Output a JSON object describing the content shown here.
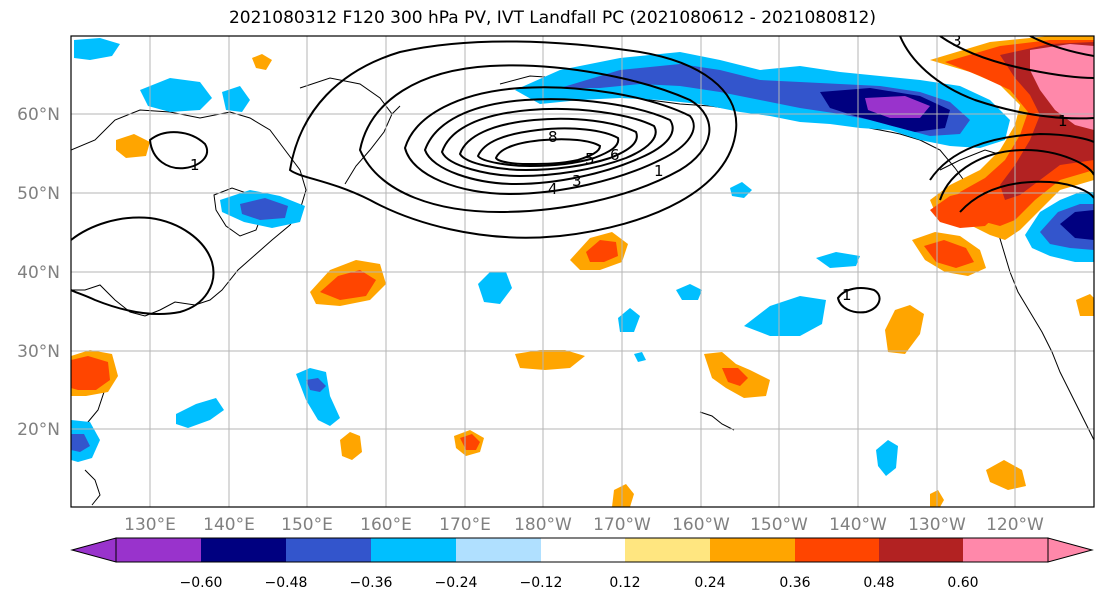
{
  "title": "2021080312 F120 300 hPa PV, IVT Landfall PC (2021080612 - 2021080812)",
  "lat_labels": [
    "60°N",
    "50°N",
    "40°N",
    "30°N",
    "20°N"
  ],
  "lon_labels": [
    "130°E",
    "140°E",
    "150°E",
    "160°E",
    "170°E",
    "180°W",
    "170°W",
    "160°W",
    "150°W",
    "140°W",
    "130°W",
    "120°W"
  ],
  "colorbar": {
    "ticks": [
      "−0.60",
      "−0.48",
      "−0.36",
      "−0.24",
      "−0.12",
      "0.12",
      "0.24",
      "0.36",
      "0.48",
      "0.60"
    ],
    "colors": [
      "#9933cc",
      "#000080",
      "#3355cc",
      "#00bfff",
      "#b0e0ff",
      "#ffffff",
      "#ffe680",
      "#ffa500",
      "#ff4500",
      "#b22222",
      "#ff88aa"
    ]
  },
  "contour_labels": [
    "8",
    "6",
    "5",
    "4",
    "3",
    "1",
    "1",
    "1",
    "3",
    "1"
  ]
}
